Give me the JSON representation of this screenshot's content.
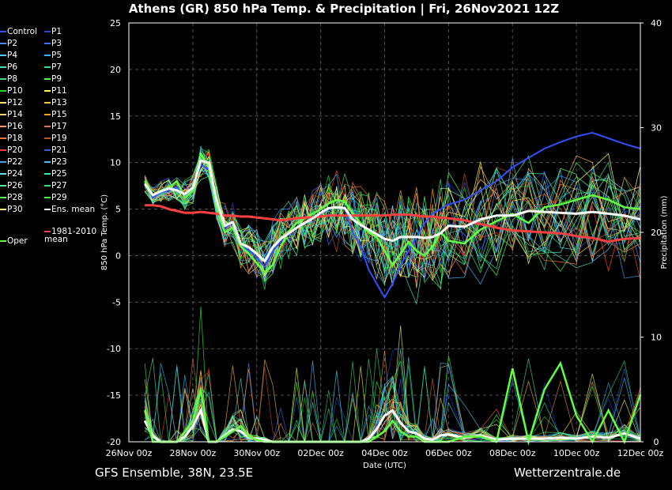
{
  "title": "Athens  (GR)  850 hPa Temp. & Precipitation | Fri, 26Nov2021 12Z",
  "footer": {
    "left": "GFS Ensemble, 38N, 23.5E",
    "right": "Wetterzentrale.de"
  },
  "legend": {
    "members": [
      {
        "name": "Control",
        "color": "#3050ff"
      },
      {
        "name": "P1",
        "color": "#2040e0"
      },
      {
        "name": "P2",
        "color": "#4a8cff"
      },
      {
        "name": "P3",
        "color": "#3a70ff"
      },
      {
        "name": "P4",
        "color": "#55c8ff"
      },
      {
        "name": "P5",
        "color": "#30b0ff"
      },
      {
        "name": "P6",
        "color": "#40e0c0"
      },
      {
        "name": "P7",
        "color": "#30e090"
      },
      {
        "name": "P8",
        "color": "#40e070"
      },
      {
        "name": "P9",
        "color": "#50ff50"
      },
      {
        "name": "P10",
        "color": "#20e020"
      },
      {
        "name": "P11",
        "color": "#ffff40"
      },
      {
        "name": "P12",
        "color": "#ffe070"
      },
      {
        "name": "P13",
        "color": "#ffc040"
      },
      {
        "name": "P14",
        "color": "#ffd070"
      },
      {
        "name": "P15",
        "color": "#ffa020"
      },
      {
        "name": "P16",
        "color": "#ff9050"
      },
      {
        "name": "P17",
        "color": "#e07040"
      },
      {
        "name": "P18",
        "color": "#ff7040"
      },
      {
        "name": "P19",
        "color": "#c05020"
      },
      {
        "name": "P20",
        "color": "#ff4030"
      },
      {
        "name": "P21",
        "color": "#3060d0"
      },
      {
        "name": "P22",
        "color": "#40a0ff"
      },
      {
        "name": "P23",
        "color": "#40c0ff"
      },
      {
        "name": "P24",
        "color": "#60e0ff"
      },
      {
        "name": "P25",
        "color": "#30f0b0"
      },
      {
        "name": "P26",
        "color": "#50f0a0"
      },
      {
        "name": "P27",
        "color": "#30e080"
      },
      {
        "name": "P28",
        "color": "#60ff60"
      },
      {
        "name": "P29",
        "color": "#40ff40"
      },
      {
        "name": "P30",
        "color": "#ffff80"
      },
      {
        "name": "Ens. mean",
        "color": "#ffffff"
      }
    ],
    "mean_label": "1981-2010 mean",
    "mean_color": "#ff4040",
    "oper_label": "Oper",
    "oper_color": "#60ff40"
  },
  "chart_data": {
    "type": "line",
    "title": "Athens  (GR)  850 hPa Temp. & Precipitation | Fri, 26Nov2021 12Z",
    "xlabel": "Date (UTC)",
    "ylabel": "850 hPa Temp. (°C)",
    "ylabel_right": "Precipitation (mm)",
    "ylim": [
      -20,
      25
    ],
    "ylim_right": [
      0,
      40
    ],
    "yticks": [
      25,
      20,
      15,
      10,
      5,
      0,
      -5,
      -10,
      -15,
      -20
    ],
    "yticks_right": [
      40,
      30,
      20,
      10,
      0
    ],
    "xticks": [
      "26Nov 00z",
      "28Nov 00z",
      "30Nov 00z",
      "02Dec 00z",
      "04Dec 00z",
      "06Dec 00z",
      "08Dec 00z",
      "10Dec 00z",
      "12Dec 00z"
    ],
    "x_hours": [
      12,
      18,
      24,
      30,
      36,
      42,
      48,
      54,
      60,
      66,
      72,
      78,
      84,
      90,
      96,
      102,
      108,
      114,
      120,
      126,
      132,
      138,
      144,
      150,
      156,
      162,
      168,
      174,
      180,
      186,
      192,
      198,
      204,
      210,
      216,
      222,
      228,
      234,
      240,
      252,
      264,
      276,
      288,
      300,
      312,
      324,
      336,
      348,
      360,
      372,
      384
    ],
    "grid": true,
    "series": [
      {
        "name": "Ens. mean",
        "color": "#ffffff",
        "values": [
          7.7,
          6.5,
          6.9,
          7.2,
          7.0,
          6.6,
          7.3,
          10.2,
          10.0,
          5.8,
          3.2,
          3.6,
          1.3,
          0.9,
          0.2,
          -0.6,
          0.9,
          1.8,
          2.4,
          3.0,
          3.5,
          4.0,
          4.6,
          5.1,
          5.2,
          5.1,
          3.9,
          3.3,
          2.8,
          2.3,
          1.8,
          1.6,
          2.0,
          2.0,
          2.0,
          1.9,
          2.0,
          2.4,
          3.2,
          3.1,
          3.9,
          4.3,
          4.3,
          4.8,
          4.7,
          4.6,
          4.5,
          4.7,
          4.5,
          4.3,
          3.9
        ]
      },
      {
        "name": "1981-2010 mean",
        "color": "#ff4040",
        "values": [
          5.4,
          5.4,
          5.3,
          5.0,
          4.8,
          4.6,
          4.6,
          4.7,
          4.6,
          4.5,
          4.3,
          4.3,
          4.2,
          4.2,
          4.1,
          4.0,
          3.9,
          3.8,
          3.9,
          4.0,
          4.1,
          4.1,
          4.2,
          4.3,
          4.3,
          4.3,
          4.3,
          4.3,
          4.3,
          4.3,
          4.3,
          4.4,
          4.4,
          4.4,
          4.3,
          4.2,
          4.2,
          4.1,
          4.0,
          3.8,
          3.4,
          3.0,
          2.7,
          2.6,
          2.5,
          2.4,
          2.1,
          1.9,
          1.5,
          1.8,
          1.9
        ]
      },
      {
        "name": "Oper",
        "color": "#60ff40",
        "values": [
          8.0,
          6.5,
          7.0,
          7.3,
          8.0,
          6.2,
          7.0,
          11.0,
          9.5,
          5.0,
          2.5,
          3.0,
          1.0,
          0.2,
          -0.8,
          -1.8,
          -1.0,
          1.0,
          2.6,
          3.5,
          4.0,
          4.5,
          5.0,
          5.6,
          6.0,
          5.8,
          4.5,
          3.5,
          2.5,
          2.0,
          0.5,
          -1.0,
          0.2,
          1.5,
          0.5,
          0.0,
          1.0,
          2.5,
          1.6,
          1.3,
          2.8,
          3.7,
          4.5,
          3.5,
          5.2,
          5.5,
          6.0,
          6.5,
          6.0,
          5.2,
          5.0
        ]
      },
      {
        "name": "Control",
        "color": "#3050ff",
        "values": [
          8.0,
          6.2,
          6.8,
          7.0,
          7.4,
          6.5,
          7.2,
          9.8,
          9.2,
          5.5,
          3.0,
          3.5,
          1.0,
          0.6,
          -0.2,
          -1.2,
          0.5,
          1.5,
          2.3,
          3.0,
          3.4,
          4.0,
          4.5,
          5.0,
          5.2,
          5.0,
          2.5,
          1.0,
          -1.5,
          -3.0,
          -4.5,
          -3.0,
          -1.0,
          0.5,
          2.0,
          3.5,
          4.5,
          5.0,
          5.5,
          6.0,
          7.0,
          8.0,
          9.5,
          10.5,
          11.5,
          12.2,
          12.8,
          13.2,
          12.6,
          12.0,
          11.5
        ]
      }
    ],
    "precipitation_series": [
      {
        "name": "Ens. mean",
        "color": "#ffffff",
        "values": [
          2.0,
          0.5,
          0.0,
          0.0,
          0.0,
          0.5,
          1.5,
          3.0,
          0.0,
          0.0,
          0.6,
          1.2,
          1.0,
          0.4,
          0.3,
          0.2,
          0.0,
          0.0,
          0.0,
          0.0,
          0.0,
          0.0,
          0.0,
          0.0,
          0.0,
          0.0,
          0.0,
          0.0,
          0.3,
          1.2,
          2.5,
          3.0,
          1.8,
          1.0,
          0.8,
          0.3,
          0.2,
          0.6,
          0.7,
          0.4,
          0.6,
          0.2,
          0.3,
          0.3,
          0.3,
          0.4,
          0.3,
          0.5,
          0.4,
          0.8,
          0.3
        ]
      },
      {
        "name": "Oper",
        "color": "#60ff40",
        "values": [
          3.0,
          0.0,
          0.0,
          0.0,
          0.0,
          1.0,
          2.0,
          5.0,
          0.0,
          0.0,
          0.5,
          1.0,
          1.5,
          0.5,
          0.2,
          0.0,
          0.0,
          0.0,
          0.0,
          0.0,
          0.0,
          0.0,
          0.0,
          0.0,
          0.0,
          0.0,
          0.0,
          0.0,
          0.0,
          0.5,
          1.0,
          2.0,
          1.0,
          0.5,
          0.5,
          0.0,
          0.0,
          0.0,
          0.0,
          0.5,
          0.5,
          0.0,
          7.0,
          0.0,
          5.0,
          7.5,
          2.5,
          0.0,
          3.0,
          0.0,
          4.5
        ]
      }
    ]
  }
}
